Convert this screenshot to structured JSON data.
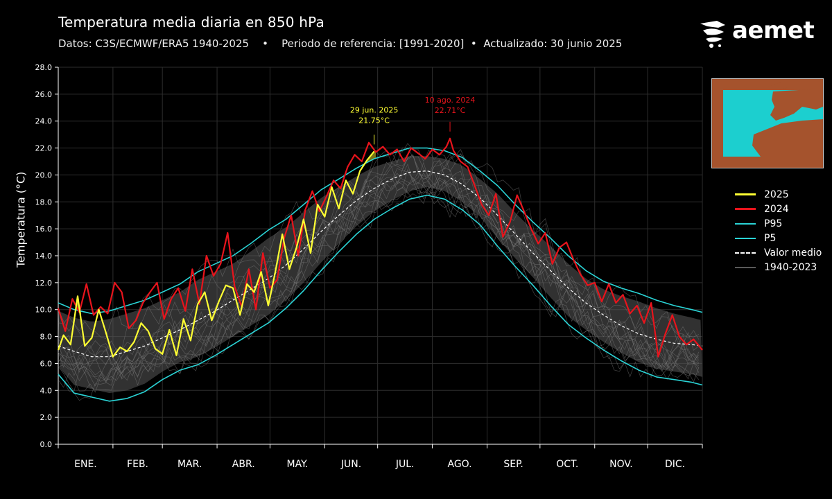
{
  "header": {
    "title": "Temperatura media diaria en 850 hPa",
    "subtitle_source": "Datos: C3S/ECMWF/ERA5 1940-2025",
    "subtitle_period": "Periodo de referencia: [1991-2020]",
    "subtitle_updated": "Actualizado: 30 junio 2025",
    "separator": "•"
  },
  "logo": {
    "text": "aemet",
    "icon": "aemet-swirl-icon"
  },
  "colors": {
    "background": "#000000",
    "y2025": "#ffff33",
    "y2024": "#e8141c",
    "percentile": "#2ad4d6",
    "mean": "#ffffff",
    "history": "#5a5a5a",
    "fill_above": "#8a8a1a",
    "map_sea": "#1ccfcf",
    "map_land": "#a5532d"
  },
  "chart_data": {
    "type": "line",
    "ylabel": "Temperatura (°C)",
    "ylim": [
      0,
      28
    ],
    "yticks": [
      "0.0",
      "2.0",
      "4.0",
      "6.0",
      "8.0",
      "10.0",
      "12.0",
      "14.0",
      "16.0",
      "18.0",
      "20.0",
      "22.0",
      "24.0",
      "26.0",
      "28.0"
    ],
    "xlim": [
      1,
      366
    ],
    "months": [
      "ENE.",
      "FEB.",
      "MAR.",
      "ABR.",
      "MAY.",
      "JUN.",
      "JUL.",
      "AGO.",
      "SEP.",
      "OCT.",
      "NOV.",
      "DIC."
    ],
    "grid": true,
    "legend_position": "right",
    "legend": [
      {
        "label": "2025",
        "color_key": "y2025",
        "style": "solid"
      },
      {
        "label": "2024",
        "color_key": "y2024",
        "style": "solid"
      },
      {
        "label": "P95",
        "color_key": "percentile",
        "style": "solid"
      },
      {
        "label": "P5",
        "color_key": "percentile",
        "style": "solid"
      },
      {
        "label": "Valor medio",
        "color_key": "mean",
        "style": "dashed"
      },
      {
        "label": "1940-2023",
        "color_key": "history",
        "style": "solid"
      }
    ],
    "series": [
      {
        "name": "Valor medio",
        "day_of_year": [
          1,
          10,
          20,
          30,
          40,
          50,
          60,
          70,
          80,
          90,
          100,
          110,
          120,
          130,
          140,
          150,
          160,
          170,
          180,
          190,
          200,
          210,
          220,
          230,
          240,
          250,
          260,
          270,
          280,
          290,
          300,
          310,
          320,
          330,
          340,
          350,
          360,
          366
        ],
        "values": [
          7.3,
          6.9,
          6.5,
          6.5,
          6.9,
          7.3,
          7.9,
          8.5,
          9.2,
          9.9,
          10.7,
          11.5,
          12.3,
          13.3,
          14.5,
          15.8,
          17.0,
          18.1,
          19.0,
          19.7,
          20.2,
          20.3,
          20.0,
          19.3,
          18.3,
          17.0,
          15.6,
          14.2,
          12.9,
          11.6,
          10.5,
          9.6,
          8.8,
          8.2,
          7.8,
          7.5,
          7.4,
          7.3
        ]
      },
      {
        "name": "P95",
        "day_of_year": [
          1,
          10,
          20,
          30,
          40,
          50,
          60,
          70,
          80,
          90,
          100,
          110,
          120,
          130,
          140,
          150,
          160,
          170,
          180,
          190,
          200,
          210,
          220,
          230,
          240,
          250,
          260,
          270,
          280,
          290,
          300,
          310,
          320,
          330,
          340,
          350,
          360,
          366
        ],
        "values": [
          10.5,
          10.0,
          9.7,
          9.9,
          10.3,
          10.7,
          11.3,
          11.9,
          12.8,
          13.4,
          14.0,
          14.9,
          15.9,
          16.7,
          17.8,
          18.9,
          19.7,
          20.5,
          21.2,
          21.6,
          22.0,
          22.0,
          21.8,
          21.3,
          20.3,
          19.2,
          17.8,
          16.5,
          15.3,
          14.0,
          12.9,
          12.1,
          11.6,
          11.2,
          10.7,
          10.3,
          10.0,
          9.8
        ]
      },
      {
        "name": "P5",
        "day_of_year": [
          1,
          10,
          20,
          30,
          40,
          50,
          60,
          70,
          80,
          90,
          100,
          110,
          120,
          130,
          140,
          150,
          160,
          170,
          180,
          190,
          200,
          210,
          220,
          230,
          240,
          250,
          260,
          270,
          280,
          290,
          300,
          310,
          320,
          330,
          340,
          350,
          360,
          366
        ],
        "values": [
          5.2,
          3.8,
          3.5,
          3.2,
          3.4,
          3.9,
          4.8,
          5.5,
          5.9,
          6.6,
          7.4,
          8.2,
          9.0,
          10.1,
          11.4,
          12.9,
          14.3,
          15.6,
          16.7,
          17.5,
          18.2,
          18.5,
          18.2,
          17.4,
          16.3,
          14.7,
          13.2,
          11.8,
          10.3,
          8.9,
          7.9,
          7.0,
          6.2,
          5.5,
          5.0,
          4.8,
          4.6,
          4.4
        ]
      },
      {
        "name": "2024",
        "day_of_year": [
          1,
          5,
          9,
          13,
          17,
          21,
          25,
          29,
          33,
          37,
          41,
          45,
          49,
          53,
          57,
          61,
          65,
          69,
          73,
          77,
          81,
          85,
          89,
          93,
          97,
          101,
          105,
          109,
          113,
          117,
          121,
          125,
          129,
          133,
          137,
          141,
          145,
          149,
          153,
          157,
          161,
          165,
          169,
          173,
          177,
          181,
          185,
          189,
          193,
          197,
          201,
          205,
          209,
          213,
          217,
          221,
          223,
          225,
          229,
          233,
          237,
          241,
          245,
          249,
          253,
          257,
          261,
          265,
          269,
          273,
          277,
          281,
          285,
          289,
          293,
          297,
          301,
          305,
          309,
          313,
          317,
          321,
          325,
          329,
          333,
          337,
          341,
          345,
          349,
          353,
          357,
          361,
          366
        ],
        "values": [
          10.1,
          8.4,
          10.8,
          9.8,
          11.9,
          9.6,
          10.2,
          9.7,
          12.0,
          11.3,
          8.6,
          9.2,
          10.5,
          11.3,
          12.0,
          9.3,
          10.8,
          11.6,
          9.9,
          13.0,
          10.4,
          14.0,
          12.5,
          13.4,
          15.7,
          11.7,
          10.2,
          13.0,
          10.0,
          14.2,
          11.6,
          12.2,
          15.3,
          17.0,
          14.0,
          17.4,
          18.8,
          17.3,
          18.4,
          19.6,
          19.0,
          20.6,
          21.5,
          21.0,
          22.4,
          21.7,
          22.1,
          21.5,
          21.9,
          21.0,
          22.0,
          21.6,
          21.2,
          21.9,
          21.5,
          22.1,
          22.71,
          21.8,
          21.0,
          20.6,
          19.2,
          17.8,
          17.0,
          18.6,
          15.4,
          16.5,
          18.5,
          17.3,
          16.0,
          14.9,
          15.7,
          13.4,
          14.6,
          15.0,
          13.7,
          12.6,
          11.8,
          12.0,
          10.6,
          11.9,
          10.5,
          11.1,
          9.7,
          10.3,
          9.0,
          10.5,
          6.5,
          8.2,
          9.6,
          8.0,
          7.4,
          7.8,
          7.0
        ]
      },
      {
        "name": "2025",
        "day_of_year": [
          1,
          4,
          8,
          12,
          16,
          20,
          24,
          28,
          32,
          36,
          40,
          44,
          48,
          52,
          56,
          60,
          64,
          68,
          72,
          76,
          80,
          84,
          88,
          92,
          96,
          100,
          104,
          108,
          112,
          116,
          120,
          124,
          128,
          132,
          136,
          140,
          144,
          148,
          152,
          156,
          160,
          164,
          168,
          172,
          176,
          180
        ],
        "values": [
          7.0,
          8.1,
          7.4,
          11.0,
          7.3,
          7.9,
          10.0,
          8.3,
          6.5,
          7.2,
          6.9,
          7.6,
          9.0,
          8.4,
          7.1,
          6.7,
          8.5,
          6.6,
          9.3,
          7.7,
          10.4,
          11.3,
          9.2,
          10.6,
          11.8,
          11.6,
          9.6,
          11.9,
          11.3,
          12.8,
          10.3,
          12.8,
          15.6,
          13.0,
          14.6,
          16.7,
          14.2,
          17.8,
          16.9,
          19.1,
          17.5,
          19.6,
          18.6,
          20.3,
          21.1,
          21.75
        ]
      }
    ],
    "history_range": "1940-2023",
    "annotations": [
      {
        "label_date": "29 jun. 2025",
        "label_value": "21.75°C",
        "day_of_year": 180,
        "value": 21.75,
        "series": "2025"
      },
      {
        "label_date": "10 ago. 2024",
        "label_value": "22.71°C",
        "day_of_year": 223,
        "value": 22.71,
        "series": "2024"
      }
    ]
  }
}
